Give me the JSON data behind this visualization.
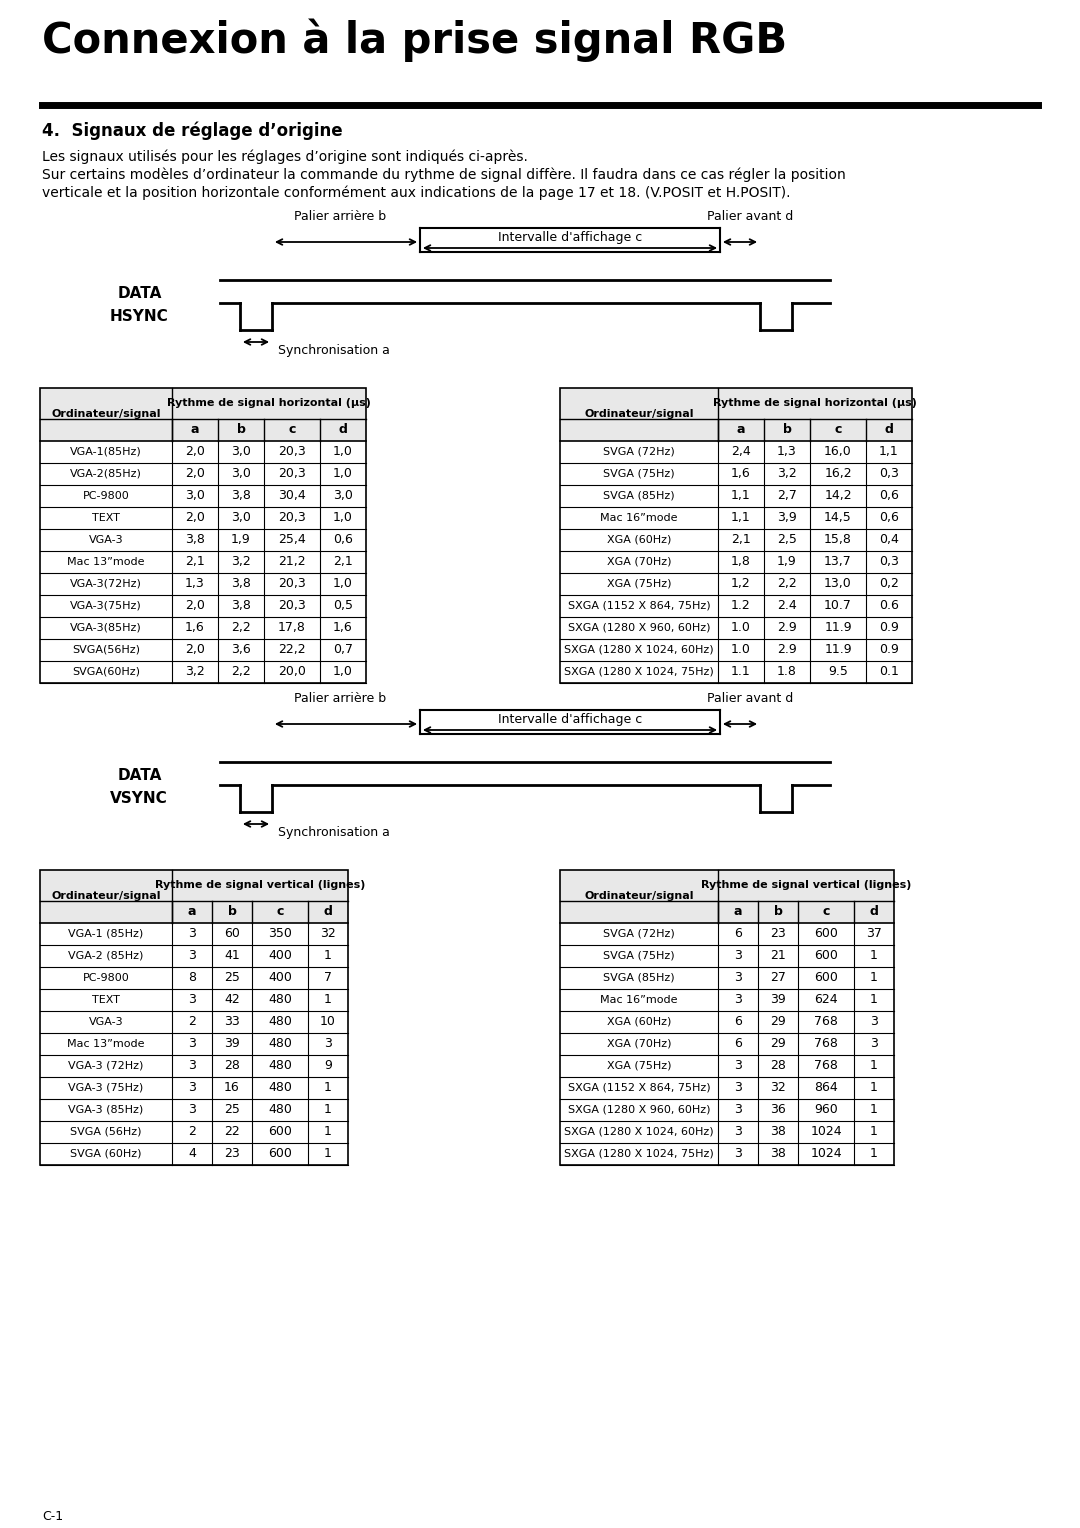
{
  "title": "Connexion à la prise signal RGB",
  "subtitle": "4.  Signaux de réglage d’origine",
  "body_text": [
    "Les signaux utilisés pour les réglages d’origine sont indiqués ci-après.",
    "Sur certains modèles d’ordinateur la commande du rythme de signal diffère. Il faudra dans ce cas régler la position",
    "verticale et la position horizontale conformément aux indications de la page 17 et 18. (V.POSIT et H.POSIT)."
  ],
  "horiz_table_left": {
    "header1": "Ordinateur/signal",
    "header2": "Rythme de signal horizontal (µs)",
    "subheaders": [
      "a",
      "b",
      "c",
      "d"
    ],
    "rows": [
      [
        "VGA-1(85Hz)",
        "2,0",
        "3,0",
        "20,3",
        "1,0"
      ],
      [
        "VGA-2(85Hz)",
        "2,0",
        "3,0",
        "20,3",
        "1,0"
      ],
      [
        "PC-9800",
        "3,0",
        "3,8",
        "30,4",
        "3,0"
      ],
      [
        "TEXT",
        "2,0",
        "3,0",
        "20,3",
        "1,0"
      ],
      [
        "VGA-3",
        "3,8",
        "1,9",
        "25,4",
        "0,6"
      ],
      [
        "Mac 13”mode",
        "2,1",
        "3,2",
        "21,2",
        "2,1"
      ],
      [
        "VGA-3(72Hz)",
        "1,3",
        "3,8",
        "20,3",
        "1,0"
      ],
      [
        "VGA-3(75Hz)",
        "2,0",
        "3,8",
        "20,3",
        "0,5"
      ],
      [
        "VGA-3(85Hz)",
        "1,6",
        "2,2",
        "17,8",
        "1,6"
      ],
      [
        "SVGA(56Hz)",
        "2,0",
        "3,6",
        "22,2",
        "0,7"
      ],
      [
        "SVGA(60Hz)",
        "3,2",
        "2,2",
        "20,0",
        "1,0"
      ]
    ]
  },
  "horiz_table_right": {
    "header1": "Ordinateur/signal",
    "header2": "Rythme de signal horizontal (µs)",
    "subheaders": [
      "a",
      "b",
      "c",
      "d"
    ],
    "rows": [
      [
        "SVGA (72Hz)",
        "2,4",
        "1,3",
        "16,0",
        "1,1"
      ],
      [
        "SVGA (75Hz)",
        "1,6",
        "3,2",
        "16,2",
        "0,3"
      ],
      [
        "SVGA (85Hz)",
        "1,1",
        "2,7",
        "14,2",
        "0,6"
      ],
      [
        "Mac 16”mode",
        "1,1",
        "3,9",
        "14,5",
        "0,6"
      ],
      [
        "XGA (60Hz)",
        "2,1",
        "2,5",
        "15,8",
        "0,4"
      ],
      [
        "XGA (70Hz)",
        "1,8",
        "1,9",
        "13,7",
        "0,3"
      ],
      [
        "XGA (75Hz)",
        "1,2",
        "2,2",
        "13,0",
        "0,2"
      ],
      [
        "SXGA (1152 X 864, 75Hz)",
        "1.2",
        "2.4",
        "10.7",
        "0.6"
      ],
      [
        "SXGA (1280 X 960, 60Hz)",
        "1.0",
        "2.9",
        "11.9",
        "0.9"
      ],
      [
        "SXGA (1280 X 1024, 60Hz)",
        "1.0",
        "2.9",
        "11.9",
        "0.9"
      ],
      [
        "SXGA (1280 X 1024, 75Hz)",
        "1.1",
        "1.8",
        "9.5",
        "0.1"
      ]
    ]
  },
  "vert_table_left": {
    "header1": "Ordinateur/signal",
    "header2": "Rythme de signal vertical (lignes)",
    "subheaders": [
      "a",
      "b",
      "c",
      "d"
    ],
    "rows": [
      [
        "VGA-1 (85Hz)",
        "3",
        "60",
        "350",
        "32"
      ],
      [
        "VGA-2 (85Hz)",
        "3",
        "41",
        "400",
        "1"
      ],
      [
        "PC-9800",
        "8",
        "25",
        "400",
        "7"
      ],
      [
        "TEXT",
        "3",
        "42",
        "480",
        "1"
      ],
      [
        "VGA-3",
        "2",
        "33",
        "480",
        "10"
      ],
      [
        "Mac 13”mode",
        "3",
        "39",
        "480",
        "3"
      ],
      [
        "VGA-3 (72Hz)",
        "3",
        "28",
        "480",
        "9"
      ],
      [
        "VGA-3 (75Hz)",
        "3",
        "16",
        "480",
        "1"
      ],
      [
        "VGA-3 (85Hz)",
        "3",
        "25",
        "480",
        "1"
      ],
      [
        "SVGA (56Hz)",
        "2",
        "22",
        "600",
        "1"
      ],
      [
        "SVGA (60Hz)",
        "4",
        "23",
        "600",
        "1"
      ]
    ]
  },
  "vert_table_right": {
    "header1": "Ordinateur/signal",
    "header2": "Rythme de signal vertical (lignes)",
    "subheaders": [
      "a",
      "b",
      "c",
      "d"
    ],
    "rows": [
      [
        "SVGA (72Hz)",
        "6",
        "23",
        "600",
        "37"
      ],
      [
        "SVGA (75Hz)",
        "3",
        "21",
        "600",
        "1"
      ],
      [
        "SVGA (85Hz)",
        "3",
        "27",
        "600",
        "1"
      ],
      [
        "Mac 16”mode",
        "3",
        "39",
        "624",
        "1"
      ],
      [
        "XGA (60Hz)",
        "6",
        "29",
        "768",
        "3"
      ],
      [
        "XGA (70Hz)",
        "6",
        "29",
        "768",
        "3"
      ],
      [
        "XGA (75Hz)",
        "3",
        "28",
        "768",
        "1"
      ],
      [
        "SXGA (1152 X 864, 75Hz)",
        "3",
        "32",
        "864",
        "1"
      ],
      [
        "SXGA (1280 X 960, 60Hz)",
        "3",
        "36",
        "960",
        "1"
      ],
      [
        "SXGA (1280 X 1024, 60Hz)",
        "3",
        "38",
        "1024",
        "1"
      ],
      [
        "SXGA (1280 X 1024, 75Hz)",
        "3",
        "38",
        "1024",
        "1"
      ]
    ]
  },
  "bg_color": "#ffffff",
  "text_color": "#000000",
  "footer": "C-1"
}
